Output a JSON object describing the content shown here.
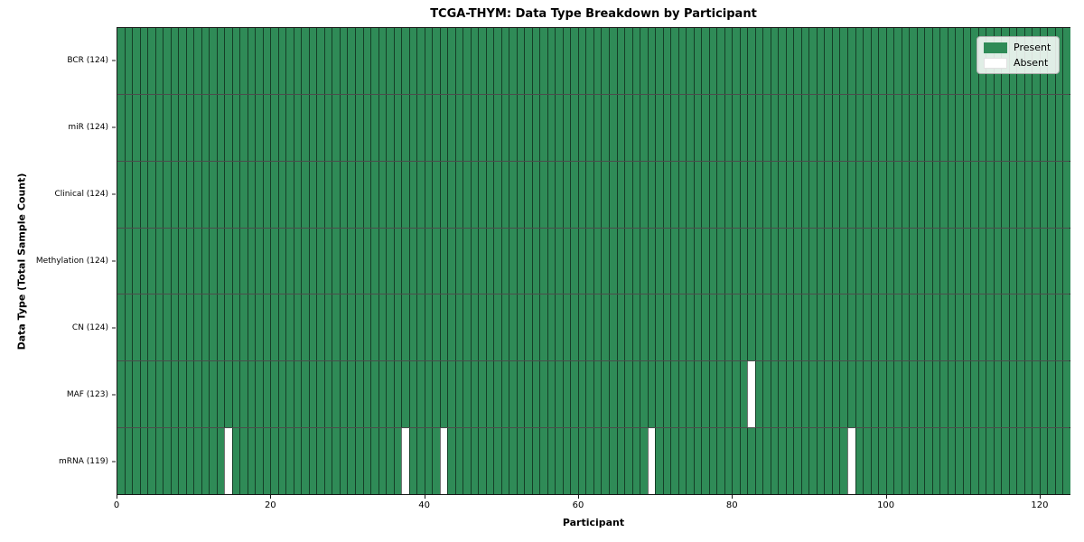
{
  "title": "TCGA-THYM: Data Type Breakdown by Participant",
  "legend": {
    "present_label": "Present",
    "absent_label": "Absent"
  },
  "colors": {
    "present": "#2f8b57",
    "absent": "#ffffff",
    "cell_edge": "rgba(0,0,0,0.55)",
    "row_separator": "rgba(0,0,0,0.70)",
    "spine": "#1a1a1a"
  },
  "chart_data": {
    "type": "heatmap",
    "title": "TCGA-THYM: Data Type Breakdown by Participant",
    "xlabel": "Participant",
    "ylabel": "Data Type (Total Sample Count)",
    "n_participants": 124,
    "x_ticks": [
      0,
      20,
      40,
      60,
      80,
      100,
      120
    ],
    "xlim": [
      0,
      124
    ],
    "grid": false,
    "legend_entries": [
      "Present",
      "Absent"
    ],
    "legend_position": "upper right",
    "rows": [
      {
        "label": "BCR (124)",
        "data_type": "BCR",
        "present_count": 124,
        "absent_participants": []
      },
      {
        "label": "miR (124)",
        "data_type": "miR",
        "present_count": 124,
        "absent_participants": []
      },
      {
        "label": "Clinical (124)",
        "data_type": "Clinical",
        "present_count": 124,
        "absent_participants": []
      },
      {
        "label": "Methylation (124)",
        "data_type": "Methylation",
        "present_count": 124,
        "absent_participants": []
      },
      {
        "label": "CN (124)",
        "data_type": "CN",
        "present_count": 124,
        "absent_participants": []
      },
      {
        "label": "MAF (123)",
        "data_type": "MAF",
        "present_count": 123,
        "absent_participants": [
          82
        ]
      },
      {
        "label": "mRNA (119)",
        "data_type": "mRNA",
        "present_count": 119,
        "absent_participants": [
          14,
          37,
          42,
          69,
          95
        ]
      }
    ]
  }
}
